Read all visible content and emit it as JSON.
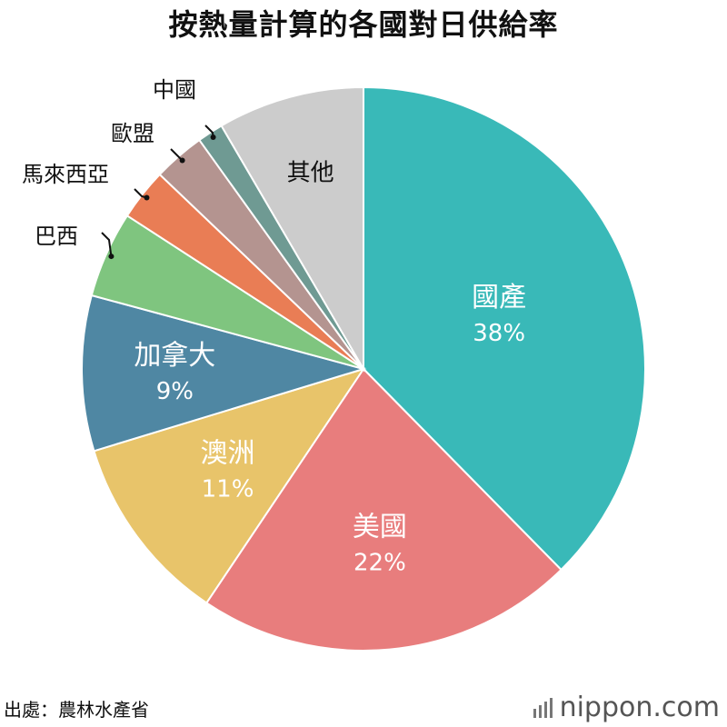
{
  "title": "按熱量計算的各國對日供給率",
  "source": "出處：農林水產省",
  "logo_text": "nippon.com",
  "chart_data": {
    "type": "pie",
    "start_angle_deg": 0,
    "direction": "clockwise",
    "slices": [
      {
        "label": "國產",
        "value": 38,
        "value_label": "38%",
        "color": "#39b9b8",
        "label_inside": true
      },
      {
        "label": "美國",
        "value": 22,
        "value_label": "22%",
        "color": "#e87d7d",
        "label_inside": true
      },
      {
        "label": "澳洲",
        "value": 11,
        "value_label": "11%",
        "color": "#e8c46a",
        "label_inside": true
      },
      {
        "label": "加拿大",
        "value": 9,
        "value_label": "9%",
        "color": "#4f87a3",
        "label_inside": true
      },
      {
        "label": "巴西",
        "value": 5,
        "value_label": "",
        "color": "#7fc57f",
        "label_inside": false
      },
      {
        "label": "馬來西亞",
        "value": 3,
        "value_label": "",
        "color": "#e97d55",
        "label_inside": false
      },
      {
        "label": "歐盟",
        "value": 3,
        "value_label": "",
        "color": "#b49490",
        "label_inside": false
      },
      {
        "label": "中國",
        "value": 1.5,
        "value_label": "",
        "color": "#6f9a93",
        "label_inside": false
      },
      {
        "label": "其他",
        "value": 8.5,
        "value_label": "",
        "color": "#cccccc",
        "label_inside": true
      }
    ]
  }
}
